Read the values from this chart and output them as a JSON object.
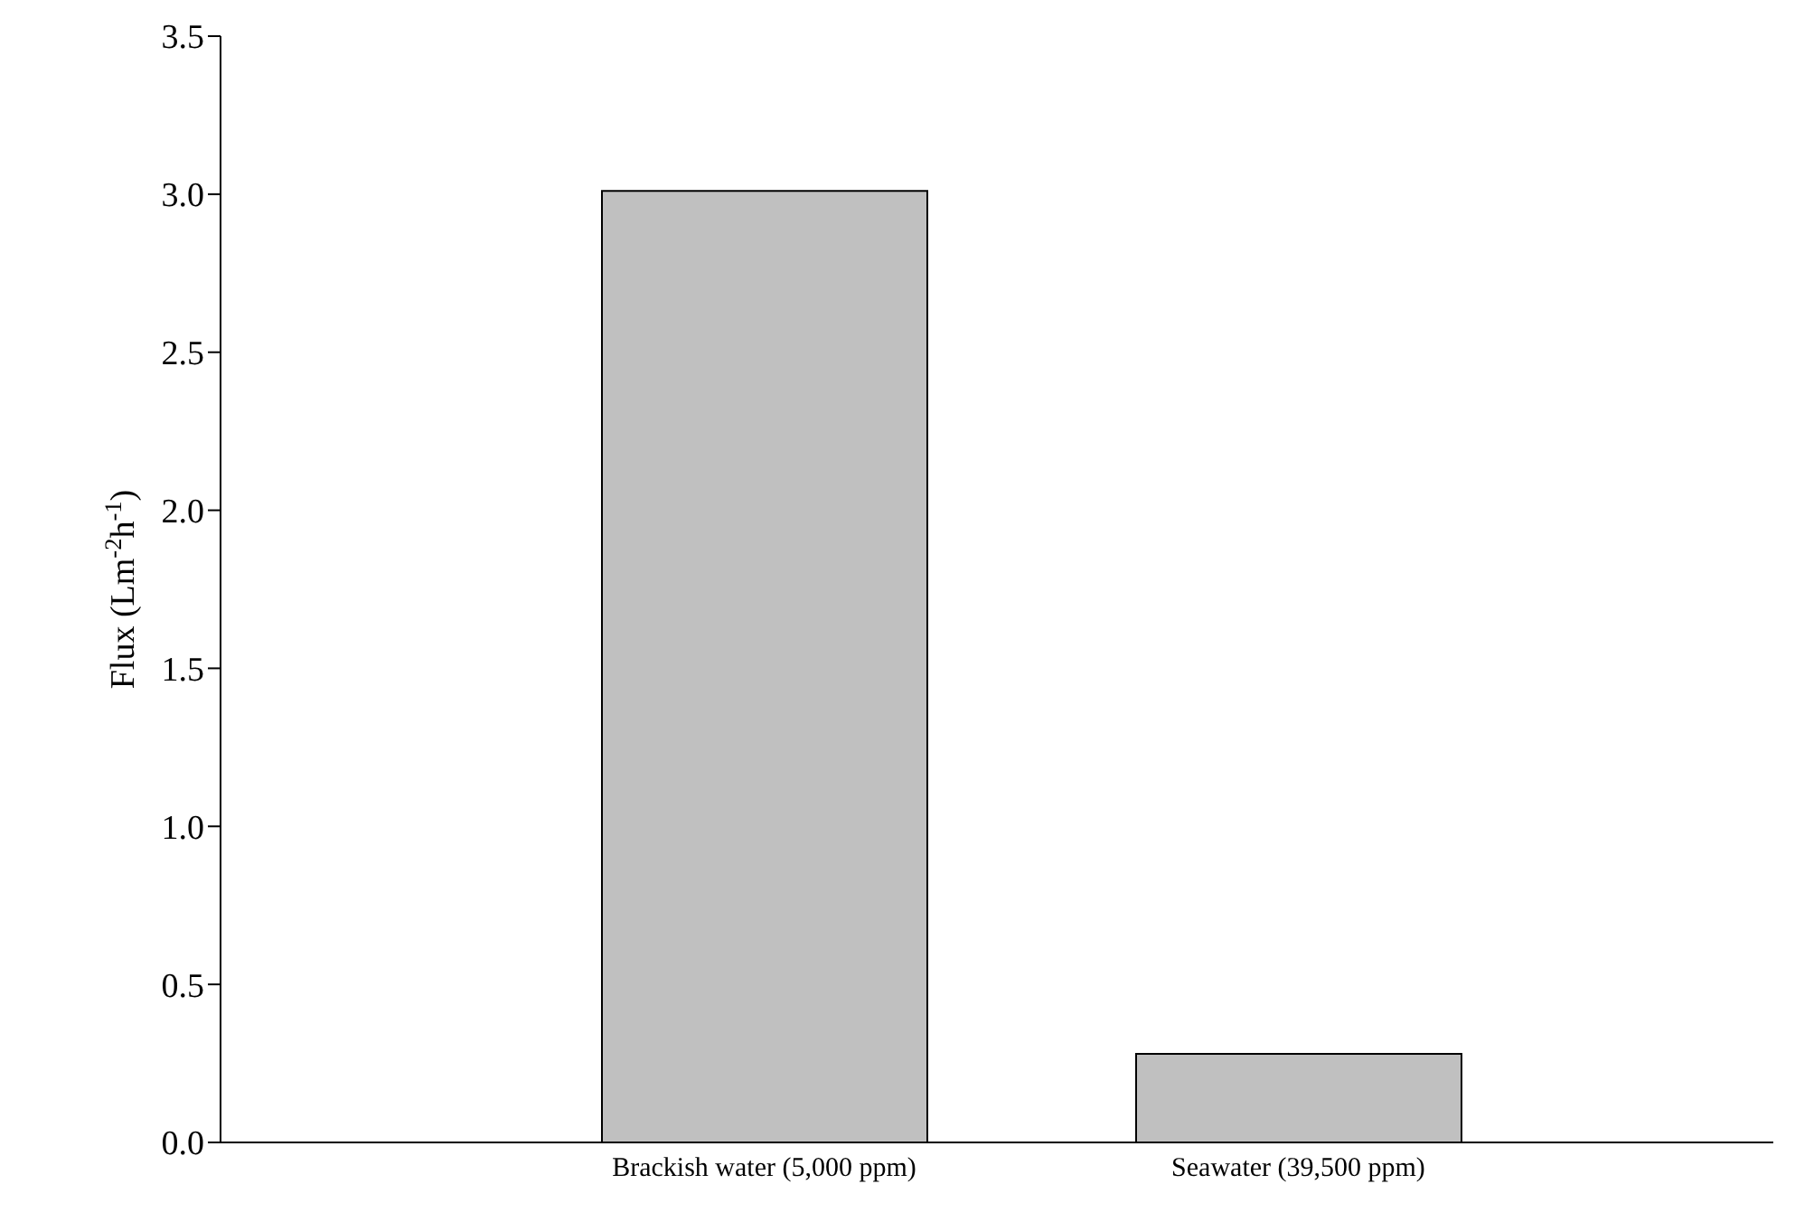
{
  "chart_data": {
    "type": "bar",
    "ylabel": "Flux (Lm$^{-2}$h$^{-1}$)",
    "categories": [
      "Brackish water (5,000 ppm)",
      "Seawater (39,500 ppm)"
    ],
    "values": [
      3.01,
      0.28
    ],
    "color": "#c0c0c0",
    "ylim": [
      0,
      3.5
    ],
    "yticks": [
      {
        "value": 0,
        "label": "0.0"
      },
      {
        "value": 0.5,
        "label": "0.5"
      },
      {
        "value": 1,
        "label": "1.0"
      },
      {
        "value": 1.5,
        "label": "1.5"
      },
      {
        "value": 2,
        "label": "2.0"
      },
      {
        "value": 2.5,
        "label": "2.5"
      },
      {
        "value": 3,
        "label": "3.0"
      },
      {
        "value": 3.5,
        "label": "3.5"
      }
    ],
    "grid": false,
    "legend": false
  }
}
